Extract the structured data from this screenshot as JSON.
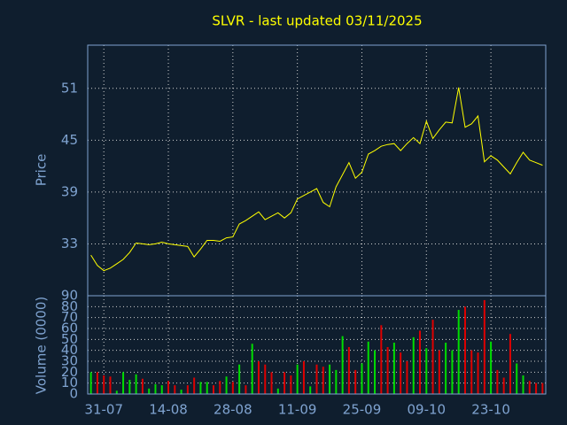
{
  "chart_data": [
    {
      "type": "line",
      "title": "SLVR - last updated 03/11/2025",
      "ylabel": "Price",
      "color": "#ffff00",
      "values": [
        31.7,
        30.5,
        29.9,
        30.2,
        30.7,
        31.2,
        32.0,
        33.1,
        33.0,
        32.9,
        33.0,
        33.2,
        33.0,
        32.9,
        32.8,
        32.7,
        31.5,
        32.4,
        33.4,
        33.4,
        33.3,
        33.7,
        33.8,
        35.3,
        35.7,
        36.2,
        36.7,
        35.8,
        36.2,
        36.6,
        36.0,
        36.6,
        38.2,
        38.6,
        39.0,
        39.4,
        37.8,
        37.3,
        39.6,
        41.0,
        42.4,
        40.6,
        41.3,
        43.4,
        43.8,
        44.3,
        44.5,
        44.6,
        43.8,
        44.6,
        45.3,
        44.6,
        47.2,
        45.2,
        46.2,
        47.1,
        47.0,
        51.1,
        46.5,
        46.9,
        47.8,
        42.5,
        43.2,
        42.7,
        41.9,
        41.1,
        42.4,
        43.6,
        42.7,
        42.4,
        42.1
      ],
      "ylim": [
        27,
        56
      ],
      "yticks": [
        33,
        39,
        45,
        51
      ],
      "grid": true
    },
    {
      "type": "bar",
      "ylabel": "Volume (0000)",
      "categories": [
        null,
        null,
        "31-07",
        null,
        null,
        null,
        null,
        null,
        null,
        null,
        null,
        null,
        "14-08",
        null,
        null,
        null,
        null,
        null,
        null,
        null,
        null,
        null,
        "28-08",
        null,
        null,
        null,
        null,
        null,
        null,
        null,
        null,
        null,
        "11-09",
        null,
        null,
        null,
        null,
        null,
        null,
        null,
        null,
        null,
        "25-09",
        null,
        null,
        null,
        null,
        null,
        null,
        null,
        null,
        null,
        "09-10",
        null,
        null,
        null,
        null,
        null,
        null,
        null,
        null,
        null,
        "23-10",
        null,
        null,
        null,
        null,
        null,
        null,
        null,
        null
      ],
      "values": [
        20,
        20,
        17,
        16,
        3,
        20,
        13,
        18,
        14,
        5,
        9,
        8,
        12,
        8,
        4,
        8,
        15,
        11,
        11,
        8,
        12,
        16,
        11,
        27,
        8,
        46,
        30,
        27,
        20,
        5,
        20,
        17,
        27,
        30,
        7,
        27,
        25,
        27,
        22,
        53,
        43,
        22,
        28,
        48,
        40,
        63,
        43,
        47,
        38,
        30,
        52,
        58,
        42,
        68,
        40,
        47,
        40,
        77,
        80,
        40,
        38,
        86,
        48,
        22,
        15,
        55,
        28,
        17,
        12,
        10,
        10
      ],
      "colors": [
        "#00dd00",
        "#dd0000",
        "#dd0000",
        "#dd0000",
        "#00dd00",
        "#00dd00",
        "#00dd00",
        "#00dd00",
        "#dd0000",
        "#00dd00",
        "#00dd00",
        "#00dd00",
        "#dd0000",
        "#dd0000",
        "#00dd00",
        "#dd0000",
        "#dd0000",
        "#00dd00",
        "#00dd00",
        "#dd0000",
        "#dd0000",
        "#00dd00",
        "#dd0000",
        "#00dd00",
        "#dd0000",
        "#00dd00",
        "#dd0000",
        "#dd0000",
        "#dd0000",
        "#00dd00",
        "#dd0000",
        "#dd0000",
        "#00dd00",
        "#dd0000",
        "#00dd00",
        "#dd0000",
        "#dd0000",
        "#00dd00",
        "#00dd00",
        "#00dd00",
        "#dd0000",
        "#dd0000",
        "#00dd00",
        "#00dd00",
        "#00dd00",
        "#dd0000",
        "#dd0000",
        "#00dd00",
        "#dd0000",
        "#dd0000",
        "#00dd00",
        "#dd0000",
        "#00dd00",
        "#dd0000",
        "#dd0000",
        "#00dd00",
        "#00dd00",
        "#00dd00",
        "#dd0000",
        "#dd0000",
        "#dd0000",
        "#dd0000",
        "#00dd00",
        "#dd0000",
        "#dd0000",
        "#dd0000",
        "#00dd00",
        "#00dd00",
        "#dd0000",
        "#dd0000",
        "#dd0000"
      ],
      "ylim": [
        0,
        90
      ],
      "yticks": [
        0,
        10,
        20,
        30,
        40,
        50,
        60,
        70,
        80,
        90
      ],
      "grid": true
    }
  ]
}
